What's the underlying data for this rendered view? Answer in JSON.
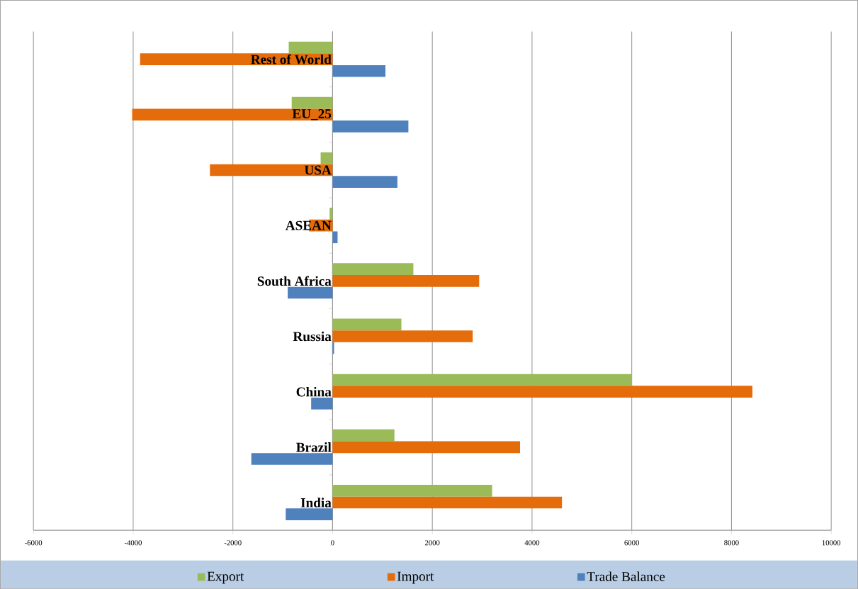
{
  "chart_data": {
    "type": "bar",
    "orientation": "horizontal",
    "categories": [
      "Rest of World",
      "EU_25",
      "USA",
      "ASEAN",
      "South Africa",
      "Russia",
      "China",
      "Brazil",
      "India"
    ],
    "series": [
      {
        "name": "Export",
        "color": "#9bbb59",
        "values": [
          -880,
          -820,
          -240,
          -60,
          1620,
          1380,
          6000,
          1240,
          3200
        ]
      },
      {
        "name": "Import",
        "color": "#e46c0a",
        "values": [
          -3860,
          -4020,
          -2460,
          -470,
          2940,
          2810,
          8420,
          3760,
          4600
        ]
      },
      {
        "name": "Trade Balance",
        "color": "#4f81bd",
        "values": [
          1060,
          1520,
          1300,
          100,
          -900,
          30,
          -430,
          -1630,
          -940
        ]
      }
    ],
    "xlim": [
      -6000,
      10000
    ],
    "xticks": [
      -6000,
      -4000,
      -2000,
      0,
      2000,
      4000,
      6000,
      8000,
      10000
    ],
    "grid": "x",
    "legend": "bottom"
  }
}
